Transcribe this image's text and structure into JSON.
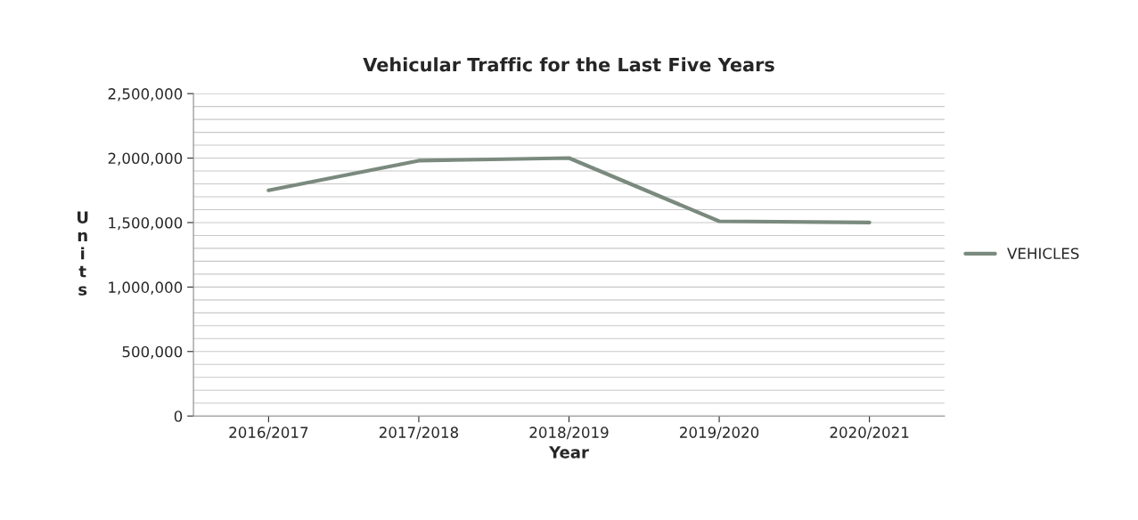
{
  "chart_data": {
    "type": "line",
    "title": "Vehicular Traffic for the Last Five Years",
    "xlabel": "Year",
    "ylabel": "Units",
    "categories": [
      "2016/2017",
      "2017/2018",
      "2018/2019",
      "2019/2020",
      "2020/2021"
    ],
    "series": [
      {
        "name": "VEHICLES",
        "color": "#7a8a7e",
        "values": [
          1750000,
          1980000,
          2000000,
          1510000,
          1500000
        ]
      }
    ],
    "ylim": [
      0,
      2500000
    ],
    "yticks": [
      {
        "value": 0,
        "label": "0"
      },
      {
        "value": 100000,
        "label": null
      },
      {
        "value": 200000,
        "label": null
      },
      {
        "value": 300000,
        "label": null
      },
      {
        "value": 400000,
        "label": null
      },
      {
        "value": 500000,
        "label": "500,000"
      },
      {
        "value": 600000,
        "label": null
      },
      {
        "value": 700000,
        "label": null
      },
      {
        "value": 800000,
        "label": null
      },
      {
        "value": 900000,
        "label": null
      },
      {
        "value": 1000000,
        "label": "1,000,000"
      },
      {
        "value": 1100000,
        "label": null
      },
      {
        "value": 1200000,
        "label": null
      },
      {
        "value": 1300000,
        "label": null
      },
      {
        "value": 1400000,
        "label": null
      },
      {
        "value": 1500000,
        "label": "1,500,000"
      },
      {
        "value": 1600000,
        "label": null
      },
      {
        "value": 1700000,
        "label": null
      },
      {
        "value": 1800000,
        "label": null
      },
      {
        "value": 1900000,
        "label": null
      },
      {
        "value": 2000000,
        "label": "2,000,000"
      },
      {
        "value": 2100000,
        "label": null
      },
      {
        "value": 2200000,
        "label": null
      },
      {
        "value": 2300000,
        "label": null
      },
      {
        "value": 2400000,
        "label": null
      },
      {
        "value": 2500000,
        "label": "2,500,000"
      }
    ],
    "grid": "y",
    "legend": "right",
    "marker": "none",
    "line_style": "solid"
  }
}
